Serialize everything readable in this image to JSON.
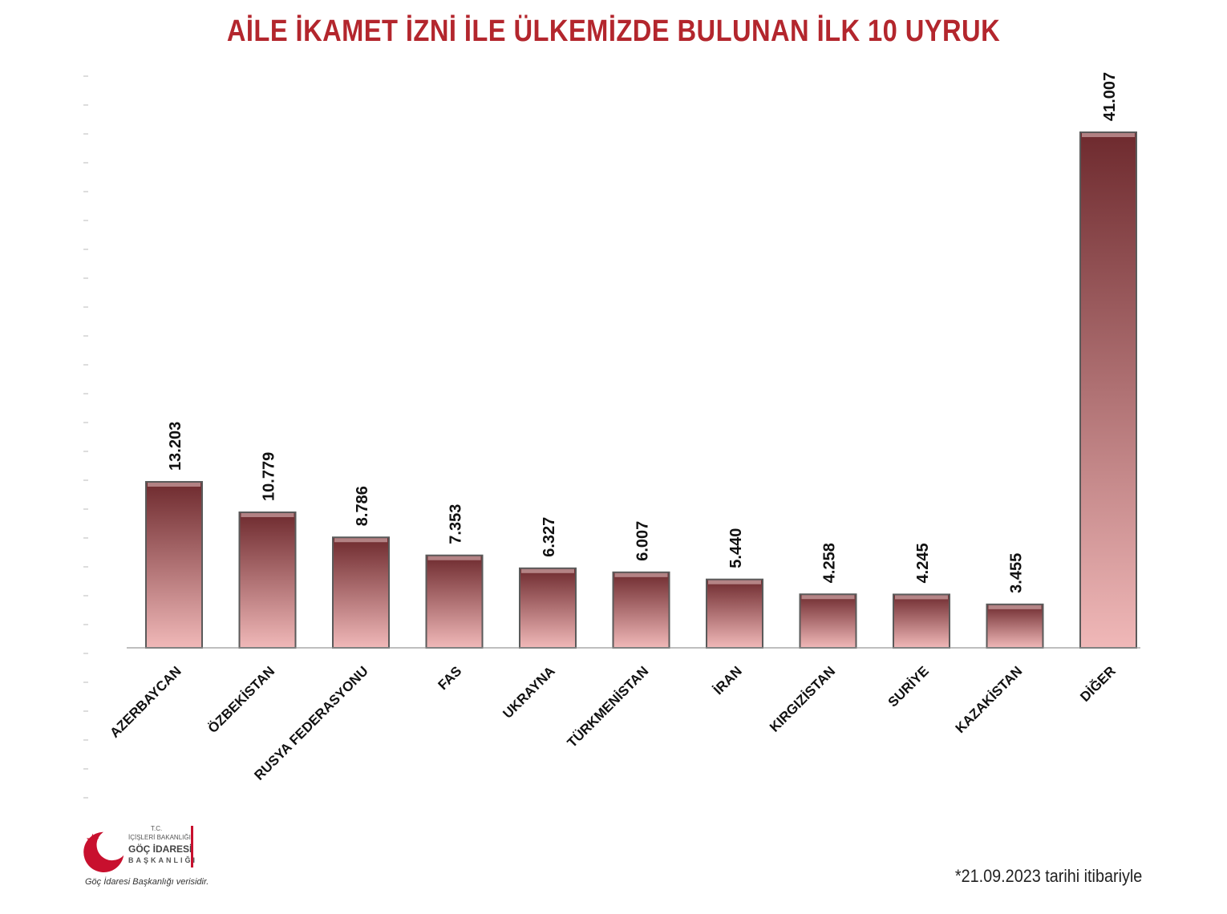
{
  "title": "AİLE İKAMET İZNİ İLE ÜLKEMİZDE BULUNAN İLK 10 UYRUK",
  "chart_data": {
    "type": "bar",
    "title": "AİLE İKAMET İZNİ İLE ÜLKEMİZDE BULUNAN İLK 10 UYRUK",
    "categories": [
      "AZERBAYCAN",
      "ÖZBEKİSTAN",
      "RUSYA FEDERASYONU",
      "FAS",
      "UKRAYNA",
      "TÜRKMENİSTAN",
      "İRAN",
      "KIRGIZİSTAN",
      "SURİYE",
      "KAZAKİSTAN",
      "DİĞER"
    ],
    "values": [
      13203,
      10779,
      8786,
      7353,
      6327,
      6007,
      5440,
      4258,
      4245,
      3455,
      41007
    ],
    "value_labels": [
      "13.203",
      "10.779",
      "8.786",
      "7.353",
      "6.327",
      "6.007",
      "5.440",
      "4.258",
      "4.245",
      "3.455",
      "41.007"
    ],
    "xlabel": "",
    "ylabel": "",
    "ylim": [
      0,
      41007
    ],
    "grid": false,
    "bar_color_top": "#6e2a2e",
    "bar_color_bottom": "#f0b8b8"
  },
  "logo": {
    "tc": "T.C.",
    "ministry": "İÇİŞLERİ BAKANLIĞI",
    "agency": "GÖÇ İDARESİ",
    "presidency": "BAŞKANLIĞI",
    "brand_color": "#c8102e"
  },
  "source_note": "Göç İdaresi Başkanlığı verisidir.",
  "date_note": "*21.09.2023 tarihi itibariyle"
}
